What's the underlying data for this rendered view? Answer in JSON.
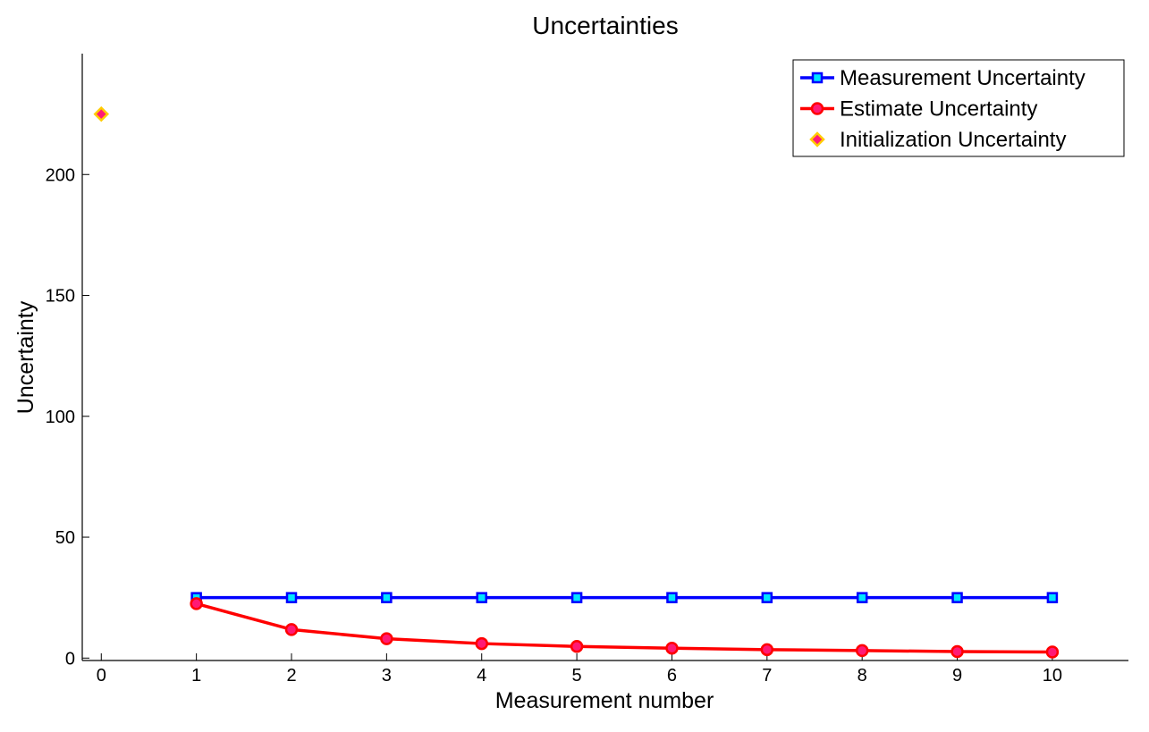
{
  "chart_data": {
    "type": "line",
    "title": "Uncertainties",
    "xlabel": "Measurement number",
    "ylabel": "Uncertainty",
    "xlim": [
      -0.2,
      10.8
    ],
    "ylim": [
      -1,
      250
    ],
    "xticks": [
      "0",
      "1",
      "2",
      "3",
      "4",
      "5",
      "6",
      "7",
      "8",
      "9",
      "10"
    ],
    "yticks": [
      "0",
      "50",
      "100",
      "150",
      "200"
    ],
    "grid": false,
    "legend_position": "top-right",
    "series": [
      {
        "name": "Measurement Uncertainty",
        "marker": "square",
        "color": "#0000ff",
        "marker_fill": "#00e5ff",
        "x": [
          1,
          2,
          3,
          4,
          5,
          6,
          7,
          8,
          9,
          10
        ],
        "values": [
          25,
          25,
          25,
          25,
          25,
          25,
          25,
          25,
          25,
          25
        ]
      },
      {
        "name": "Estimate Uncertainty",
        "marker": "circle",
        "color": "#ff0000",
        "marker_fill": "#ff1a75",
        "x": [
          1,
          2,
          3,
          4,
          5,
          6,
          7,
          8,
          9,
          10
        ],
        "values": [
          22.5,
          11.8,
          8.0,
          6.0,
          4.8,
          4.1,
          3.5,
          3.1,
          2.7,
          2.5
        ]
      },
      {
        "name": "Initialization Uncertainty",
        "marker": "diamond",
        "color": "#ffcc00",
        "marker_fill": "#ff1a75",
        "x": [
          0
        ],
        "values": [
          225
        ]
      }
    ]
  }
}
